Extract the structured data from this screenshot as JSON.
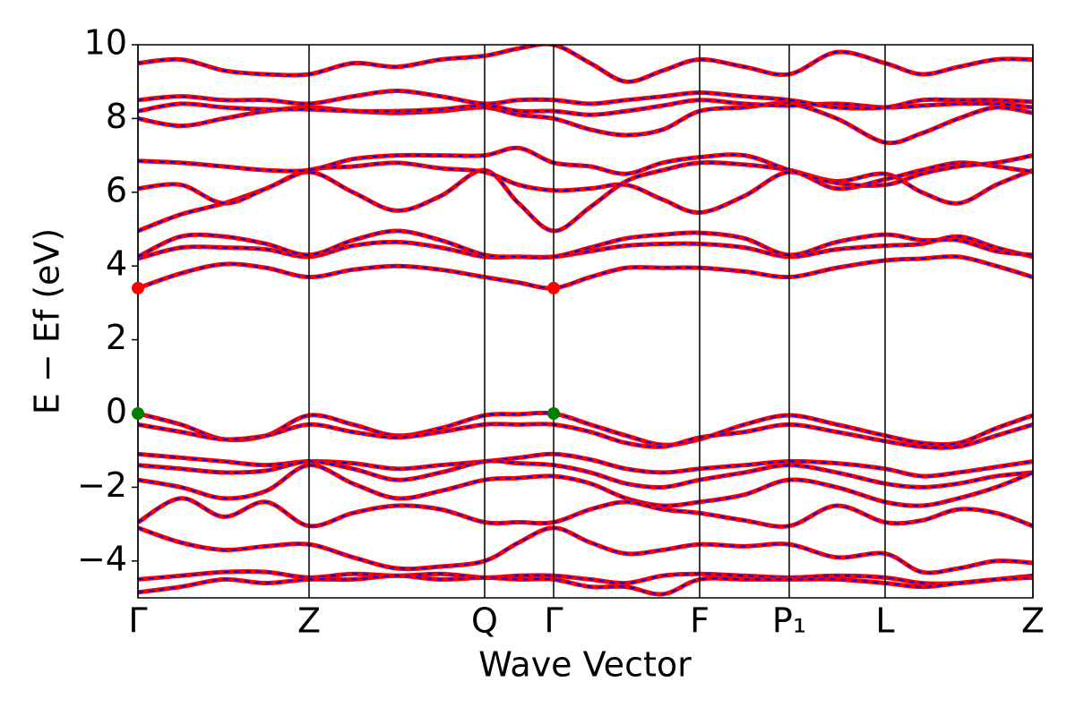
{
  "chart_data": {
    "type": "band_structure",
    "xlabel": "Wave Vector",
    "ylabel": "E − Ef (eV)",
    "x": [
      0,
      0.48,
      0.96,
      1.43,
      1.91,
      2.4,
      2.89,
      3.38,
      3.87,
      4.25,
      4.64,
      5.05,
      5.45,
      5.86,
      6.27,
      6.77,
      7.27,
      7.8,
      8.34,
      8.75,
      9.16,
      9.58,
      9.99
    ],
    "xlim": [
      0,
      9.99
    ],
    "xticks": [
      {
        "value": 0,
        "label": "Γ"
      },
      {
        "value": 1.91,
        "label": "Z"
      },
      {
        "value": 3.87,
        "label": "Q"
      },
      {
        "value": 4.64,
        "label": "Γ"
      },
      {
        "value": 6.27,
        "label": "F"
      },
      {
        "value": 7.27,
        "label": "P₁"
      },
      {
        "value": 8.34,
        "label": "L"
      },
      {
        "value": 9.99,
        "label": "Z"
      }
    ],
    "ylim": [
      -5,
      10
    ],
    "yticks": [
      {
        "value": -4,
        "label": "−4"
      },
      {
        "value": -2,
        "label": "−2"
      },
      0,
      2,
      4,
      6,
      8,
      10
    ],
    "line_color": "#ff0000",
    "overlay_color": "#0000ff",
    "series": [
      {
        "values": [
          3.4,
          3.8,
          4.05,
          3.95,
          3.7,
          3.9,
          4.0,
          3.9,
          3.7,
          3.55,
          3.4,
          3.7,
          3.95,
          3.95,
          3.95,
          3.85,
          3.7,
          3.95,
          4.15,
          4.2,
          4.25,
          4.0,
          3.7
        ]
      },
      {
        "values": [
          4.2,
          4.5,
          4.5,
          4.45,
          4.25,
          4.55,
          4.65,
          4.5,
          4.25,
          4.25,
          4.25,
          4.4,
          4.55,
          4.6,
          4.6,
          4.5,
          4.25,
          4.45,
          4.55,
          4.6,
          4.8,
          4.5,
          4.25
        ]
      },
      {
        "values": [
          4.25,
          4.8,
          4.8,
          4.6,
          4.3,
          4.7,
          4.95,
          4.7,
          4.3,
          4.25,
          4.25,
          4.5,
          4.75,
          4.85,
          4.9,
          4.75,
          4.3,
          4.65,
          4.85,
          4.7,
          4.7,
          4.4,
          4.3
        ]
      },
      {
        "values": [
          4.95,
          5.4,
          5.7,
          6.1,
          6.55,
          6.0,
          5.5,
          5.9,
          6.6,
          5.7,
          4.95,
          5.6,
          6.3,
          6.6,
          6.8,
          6.75,
          6.6,
          6.3,
          6.5,
          6.0,
          5.7,
          6.2,
          6.6
        ]
      },
      {
        "values": [
          6.1,
          6.2,
          5.7,
          6.1,
          6.6,
          6.7,
          6.8,
          6.65,
          6.55,
          6.2,
          6.05,
          6.1,
          6.2,
          5.8,
          5.45,
          5.9,
          6.55,
          6.1,
          6.35,
          6.6,
          6.8,
          6.7,
          6.55
        ]
      },
      {
        "values": [
          6.85,
          6.8,
          6.7,
          6.6,
          6.6,
          6.9,
          7.0,
          7.0,
          7.0,
          7.2,
          6.8,
          6.7,
          6.5,
          6.8,
          6.95,
          7.0,
          6.6,
          6.25,
          6.2,
          6.5,
          6.7,
          6.8,
          7.0
        ]
      },
      {
        "values": [
          8.0,
          7.8,
          8.0,
          8.2,
          8.3,
          8.2,
          8.15,
          8.2,
          8.3,
          8.1,
          8.0,
          7.7,
          7.55,
          7.7,
          8.2,
          8.3,
          8.4,
          8.0,
          7.35,
          7.6,
          8.0,
          8.3,
          8.15
        ]
      },
      {
        "values": [
          8.2,
          8.4,
          8.3,
          8.25,
          8.25,
          8.2,
          8.2,
          8.25,
          8.35,
          8.2,
          8.2,
          8.1,
          8.2,
          8.35,
          8.5,
          8.4,
          8.35,
          8.4,
          8.3,
          8.35,
          8.4,
          8.4,
          8.3
        ]
      },
      {
        "values": [
          8.5,
          8.6,
          8.5,
          8.5,
          8.4,
          8.6,
          8.75,
          8.6,
          8.4,
          8.5,
          8.5,
          8.4,
          8.5,
          8.6,
          8.7,
          8.6,
          8.5,
          8.3,
          8.3,
          8.5,
          8.5,
          8.5,
          8.45
        ]
      },
      {
        "values": [
          9.5,
          9.6,
          9.3,
          9.2,
          9.2,
          9.5,
          9.4,
          9.6,
          9.7,
          9.9,
          10.0,
          9.5,
          9.0,
          9.3,
          9.6,
          9.4,
          9.2,
          9.8,
          9.5,
          9.2,
          9.4,
          9.6,
          9.6
        ]
      },
      {
        "values": [
          0,
          -0.3,
          -0.7,
          -0.6,
          -0.05,
          -0.3,
          -0.6,
          -0.4,
          -0.05,
          -0.02,
          0,
          -0.3,
          -0.6,
          -0.85,
          -0.7,
          -0.3,
          -0.05,
          -0.3,
          -0.6,
          -0.8,
          -0.8,
          -0.4,
          -0.05
        ]
      },
      {
        "values": [
          -0.3,
          -0.5,
          -0.7,
          -0.6,
          -0.3,
          -0.5,
          -0.65,
          -0.5,
          -0.3,
          -0.3,
          -0.3,
          -0.5,
          -0.8,
          -0.9,
          -0.65,
          -0.5,
          -0.3,
          -0.5,
          -0.75,
          -0.9,
          -0.9,
          -0.6,
          -0.3
        ]
      },
      {
        "values": [
          -1.1,
          -1.2,
          -1.3,
          -1.4,
          -1.3,
          -1.35,
          -1.5,
          -1.4,
          -1.3,
          -1.2,
          -1.1,
          -1.25,
          -1.5,
          -1.6,
          -1.5,
          -1.4,
          -1.3,
          -1.35,
          -1.5,
          -1.7,
          -1.6,
          -1.45,
          -1.3
        ]
      },
      {
        "values": [
          -1.4,
          -1.5,
          -1.6,
          -1.55,
          -1.3,
          -1.5,
          -1.8,
          -1.6,
          -1.3,
          -1.35,
          -1.4,
          -1.6,
          -1.9,
          -2.0,
          -1.8,
          -1.6,
          -1.4,
          -1.6,
          -1.9,
          -2.0,
          -1.9,
          -1.7,
          -1.6
        ]
      },
      {
        "values": [
          -1.8,
          -2.0,
          -2.3,
          -2.1,
          -1.4,
          -1.9,
          -2.3,
          -2.1,
          -1.8,
          -1.75,
          -1.7,
          -1.9,
          -2.3,
          -2.5,
          -2.4,
          -2.2,
          -1.8,
          -2.0,
          -2.4,
          -2.5,
          -2.3,
          -2.0,
          -1.6
        ]
      },
      {
        "values": [
          -2.95,
          -2.3,
          -2.8,
          -2.4,
          -3.05,
          -2.7,
          -2.5,
          -2.6,
          -2.95,
          -2.95,
          -2.95,
          -2.6,
          -2.4,
          -2.6,
          -2.7,
          -2.9,
          -3.05,
          -2.5,
          -2.95,
          -2.9,
          -2.6,
          -2.7,
          -3.05
        ]
      },
      {
        "values": [
          -3.1,
          -3.5,
          -3.7,
          -3.6,
          -3.55,
          -3.9,
          -4.2,
          -4.15,
          -4.0,
          -3.5,
          -3.1,
          -3.5,
          -3.8,
          -3.7,
          -3.55,
          -3.6,
          -3.55,
          -3.9,
          -3.8,
          -4.3,
          -4.2,
          -4.0,
          -4.05
        ]
      },
      {
        "values": [
          -4.5,
          -4.4,
          -4.3,
          -4.3,
          -4.45,
          -4.35,
          -4.4,
          -4.35,
          -4.45,
          -4.4,
          -4.4,
          -4.5,
          -4.6,
          -4.4,
          -4.35,
          -4.4,
          -4.45,
          -4.4,
          -4.45,
          -4.6,
          -4.6,
          -4.5,
          -4.4
        ]
      },
      {
        "values": [
          -4.85,
          -4.7,
          -4.5,
          -4.6,
          -4.5,
          -4.5,
          -4.4,
          -4.5,
          -4.45,
          -4.5,
          -4.5,
          -4.7,
          -4.7,
          -4.9,
          -4.5,
          -4.5,
          -4.5,
          -4.5,
          -4.6,
          -4.7,
          -4.6,
          -4.5,
          -4.45
        ]
      }
    ],
    "markers": [
      {
        "x": 0,
        "y": 3.4,
        "color": "#ff0000"
      },
      {
        "x": 4.64,
        "y": 3.4,
        "color": "#ff0000"
      },
      {
        "x": 0,
        "y": 0,
        "color": "#008000"
      },
      {
        "x": 4.64,
        "y": 0,
        "color": "#008000"
      }
    ]
  }
}
